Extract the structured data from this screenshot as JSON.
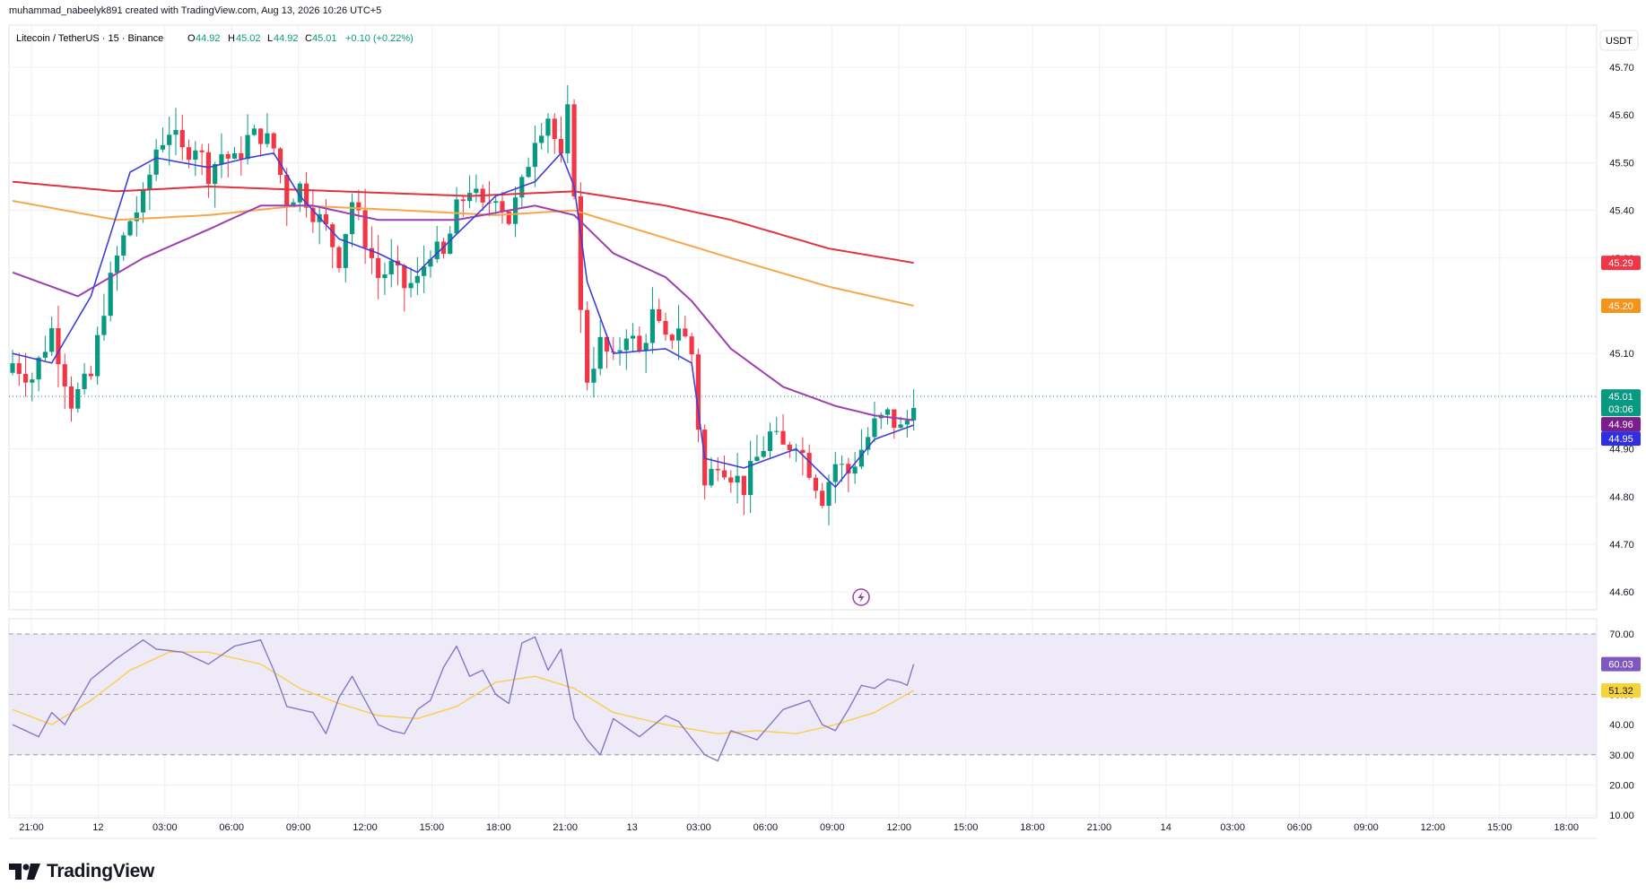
{
  "header": {
    "line": "muhammad_nabeelyk891 created with TradingView.com, Aug 13, 2026 10:26 UTC+5"
  },
  "legend": {
    "symbol": "Litecoin / TetherUS · 15 · Binance",
    "o_label": "O",
    "o_value": "44.92",
    "h_label": "H",
    "h_value": "45.02",
    "l_label": "L",
    "l_value": "44.92",
    "c_label": "C",
    "c_value": "45.01",
    "change": "+0.10 (+0.22%)"
  },
  "currency": "USDT",
  "logo": {
    "text": "TradingView"
  },
  "colors": {
    "up": "#089981",
    "down": "#f23645",
    "ma_red": "#e0323f",
    "ma_orange": "#f7a64a",
    "ma_purple": "#9c3fb0",
    "ma_blue": "#3f3fd6",
    "rsi_line": "#8478c5",
    "rsi_ma": "#f5cf4e",
    "rsi_band": "#efeaf8",
    "grid": "#eef0f3",
    "text": "#131722"
  },
  "chart_data": {
    "type": "candlestick",
    "price_axis": {
      "ticks": [
        "45.70",
        "45.60",
        "45.50",
        "45.40",
        "45.30",
        "45.10",
        "44.90",
        "44.80",
        "44.70",
        "44.60"
      ],
      "ylim": [
        44.565,
        45.77
      ]
    },
    "rsi_axis": {
      "ticks": [
        "70.00",
        "60.00",
        "50.00",
        "40.00",
        "30.00",
        "20.00",
        "10.00"
      ],
      "upper": 70,
      "lower": 30,
      "ylim": [
        10,
        72.5
      ]
    },
    "time_axis": [
      "21:00",
      "12",
      "03:00",
      "06:00",
      "09:00",
      "12:00",
      "15:00",
      "18:00",
      "21:00",
      "13",
      "03:00",
      "06:00",
      "09:00",
      "12:00",
      "15:00",
      "18:00",
      "21:00",
      "14",
      "03:00",
      "06:00",
      "09:00",
      "12:00",
      "15:00",
      "18:00"
    ],
    "price_badges": [
      {
        "value": "45.29",
        "color": "#f23645"
      },
      {
        "value": "45.20",
        "color": "#f7931a"
      },
      {
        "value": "45.01",
        "sub": "03:06",
        "color": "#089981"
      },
      {
        "value": "44.96",
        "color": "#7b1d8a"
      },
      {
        "value": "44.95",
        "color": "#2f2fe0"
      }
    ],
    "rsi_badges": [
      {
        "value": "60.03",
        "color": "#7e57c2"
      },
      {
        "value": "51.32",
        "color": "#f5d33a",
        "text_color": "#131722"
      }
    ],
    "candle_anchors": [
      [
        0,
        45.08
      ],
      [
        3,
        45.05
      ],
      [
        6,
        45.15
      ],
      [
        9,
        45.0
      ],
      [
        12,
        45.05
      ],
      [
        14,
        45.2
      ],
      [
        16,
        45.3
      ],
      [
        18,
        45.38
      ],
      [
        20,
        45.42
      ],
      [
        22,
        45.53
      ],
      [
        24,
        45.57
      ],
      [
        26,
        45.52
      ],
      [
        28,
        45.54
      ],
      [
        30,
        45.48
      ],
      [
        32,
        45.52
      ],
      [
        34,
        45.5
      ],
      [
        36,
        45.55
      ],
      [
        38,
        45.56
      ],
      [
        40,
        45.53
      ],
      [
        42,
        45.42
      ],
      [
        44,
        45.45
      ],
      [
        46,
        45.4
      ],
      [
        48,
        45.36
      ],
      [
        50,
        45.3
      ],
      [
        52,
        45.42
      ],
      [
        54,
        45.34
      ],
      [
        56,
        45.26
      ],
      [
        58,
        45.28
      ],
      [
        60,
        45.24
      ],
      [
        62,
        45.25
      ],
      [
        64,
        45.32
      ],
      [
        66,
        45.3
      ],
      [
        68,
        45.4
      ],
      [
        70,
        45.45
      ],
      [
        72,
        45.4
      ],
      [
        74,
        45.44
      ],
      [
        76,
        45.38
      ],
      [
        78,
        45.45
      ],
      [
        80,
        45.56
      ],
      [
        82,
        45.6
      ],
      [
        84,
        45.5
      ],
      [
        85,
        45.6
      ],
      [
        86,
        45.45
      ],
      [
        87,
        45.18
      ],
      [
        88,
        45.05
      ],
      [
        90,
        45.12
      ],
      [
        92,
        45.08
      ],
      [
        94,
        45.15
      ],
      [
        96,
        45.1
      ],
      [
        98,
        45.18
      ],
      [
        100,
        45.12
      ],
      [
        102,
        45.16
      ],
      [
        104,
        45.1
      ],
      [
        105,
        44.95
      ],
      [
        106,
        44.82
      ],
      [
        108,
        44.88
      ],
      [
        110,
        44.85
      ],
      [
        112,
        44.82
      ],
      [
        114,
        44.88
      ],
      [
        116,
        44.93
      ],
      [
        118,
        44.9
      ],
      [
        120,
        44.92
      ],
      [
        122,
        44.86
      ],
      [
        124,
        44.8
      ],
      [
        126,
        44.87
      ],
      [
        128,
        44.85
      ],
      [
        130,
        44.9
      ],
      [
        132,
        44.95
      ],
      [
        134,
        44.97
      ],
      [
        136,
        44.94
      ],
      [
        137,
        44.96
      ],
      [
        138,
        45.01
      ]
    ],
    "ma_red": [
      [
        0,
        45.46
      ],
      [
        16,
        45.44
      ],
      [
        30,
        45.45
      ],
      [
        50,
        45.44
      ],
      [
        70,
        45.43
      ],
      [
        86,
        45.44
      ],
      [
        100,
        45.41
      ],
      [
        110,
        45.38
      ],
      [
        125,
        45.32
      ],
      [
        138,
        45.29
      ]
    ],
    "ma_orange": [
      [
        0,
        45.42
      ],
      [
        16,
        45.38
      ],
      [
        30,
        45.39
      ],
      [
        44,
        45.41
      ],
      [
        60,
        45.4
      ],
      [
        74,
        45.39
      ],
      [
        86,
        45.4
      ],
      [
        98,
        45.35
      ],
      [
        110,
        45.3
      ],
      [
        125,
        45.24
      ],
      [
        138,
        45.2
      ]
    ],
    "ma_purple": [
      [
        0,
        45.27
      ],
      [
        10,
        45.22
      ],
      [
        20,
        45.3
      ],
      [
        30,
        45.36
      ],
      [
        38,
        45.41
      ],
      [
        46,
        45.41
      ],
      [
        56,
        45.38
      ],
      [
        68,
        45.38
      ],
      [
        80,
        45.41
      ],
      [
        86,
        45.39
      ],
      [
        92,
        45.31
      ],
      [
        100,
        45.26
      ],
      [
        104,
        45.21
      ],
      [
        110,
        45.11
      ],
      [
        118,
        45.03
      ],
      [
        126,
        44.99
      ],
      [
        132,
        44.97
      ],
      [
        138,
        44.96
      ]
    ],
    "ma_blue": [
      [
        0,
        45.1
      ],
      [
        6,
        45.08
      ],
      [
        12,
        45.22
      ],
      [
        18,
        45.48
      ],
      [
        22,
        45.51
      ],
      [
        30,
        45.49
      ],
      [
        36,
        45.51
      ],
      [
        40,
        45.52
      ],
      [
        44,
        45.43
      ],
      [
        50,
        45.34
      ],
      [
        56,
        45.31
      ],
      [
        62,
        45.27
      ],
      [
        68,
        45.35
      ],
      [
        74,
        45.43
      ],
      [
        80,
        45.46
      ],
      [
        84,
        45.52
      ],
      [
        86,
        45.45
      ],
      [
        88,
        45.25
      ],
      [
        92,
        45.1
      ],
      [
        100,
        45.11
      ],
      [
        104,
        45.08
      ],
      [
        106,
        44.88
      ],
      [
        112,
        44.86
      ],
      [
        120,
        44.9
      ],
      [
        126,
        44.82
      ],
      [
        132,
        44.92
      ],
      [
        138,
        44.95
      ]
    ],
    "rsi": [
      [
        0,
        40
      ],
      [
        4,
        36
      ],
      [
        6,
        44
      ],
      [
        8,
        40
      ],
      [
        12,
        55
      ],
      [
        16,
        62
      ],
      [
        20,
        68
      ],
      [
        22,
        65
      ],
      [
        26,
        64
      ],
      [
        30,
        60
      ],
      [
        34,
        66
      ],
      [
        38,
        68
      ],
      [
        40,
        58
      ],
      [
        42,
        46
      ],
      [
        46,
        44
      ],
      [
        48,
        37
      ],
      [
        50,
        49
      ],
      [
        52,
        56
      ],
      [
        56,
        40
      ],
      [
        58,
        38
      ],
      [
        60,
        37
      ],
      [
        62,
        45
      ],
      [
        64,
        48
      ],
      [
        66,
        59
      ],
      [
        68,
        66
      ],
      [
        70,
        56
      ],
      [
        72,
        58
      ],
      [
        74,
        50
      ],
      [
        76,
        47
      ],
      [
        78,
        67
      ],
      [
        80,
        69
      ],
      [
        82,
        58
      ],
      [
        84,
        65
      ],
      [
        86,
        42
      ],
      [
        88,
        35
      ],
      [
        90,
        30
      ],
      [
        92,
        42
      ],
      [
        96,
        36
      ],
      [
        100,
        43
      ],
      [
        102,
        41
      ],
      [
        106,
        30
      ],
      [
        108,
        28
      ],
      [
        110,
        38
      ],
      [
        114,
        35
      ],
      [
        118,
        45
      ],
      [
        122,
        48
      ],
      [
        124,
        40
      ],
      [
        126,
        38
      ],
      [
        128,
        45
      ],
      [
        130,
        53
      ],
      [
        132,
        52
      ],
      [
        134,
        55
      ],
      [
        136,
        54
      ],
      [
        137,
        53
      ],
      [
        138,
        60
      ]
    ],
    "rsi_ma": [
      [
        0,
        45
      ],
      [
        6,
        40
      ],
      [
        12,
        48
      ],
      [
        18,
        58
      ],
      [
        24,
        64
      ],
      [
        30,
        64
      ],
      [
        38,
        60
      ],
      [
        44,
        52
      ],
      [
        50,
        47
      ],
      [
        56,
        43
      ],
      [
        62,
        42
      ],
      [
        68,
        46
      ],
      [
        74,
        54
      ],
      [
        80,
        56
      ],
      [
        86,
        52
      ],
      [
        92,
        44
      ],
      [
        100,
        40
      ],
      [
        108,
        37
      ],
      [
        114,
        38
      ],
      [
        120,
        37
      ],
      [
        126,
        40
      ],
      [
        132,
        44
      ],
      [
        138,
        51.3
      ]
    ]
  }
}
